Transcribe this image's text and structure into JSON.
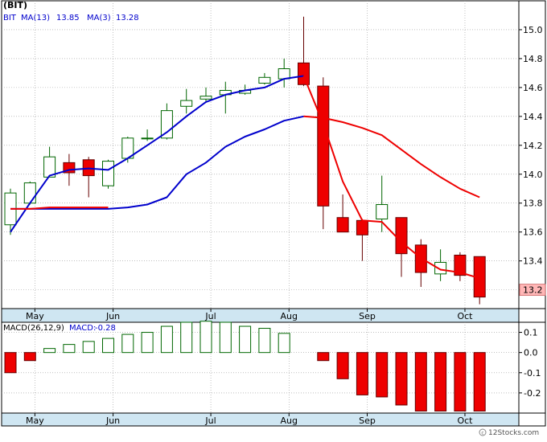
{
  "chart_data": [
    {
      "type": "candlestick",
      "title": "(BIT)",
      "legend": [
        {
          "label": "MA(13)",
          "value": "13.85",
          "color": "#0000cc"
        },
        {
          "label": "MA(3)",
          "value": "13.28",
          "color": "#0000cc"
        }
      ],
      "ylim": [
        13.07,
        15.2
      ],
      "yticks": [
        "15.0",
        "14.8",
        "14.6",
        "14.4",
        "14.2",
        "14.0",
        "13.8",
        "13.6",
        "13.4",
        "13.2"
      ],
      "last_price_label": "13.2",
      "months": [
        "May",
        "Jun",
        "Jul",
        "Aug",
        "Sep",
        "Oct"
      ],
      "month_positions": [
        1.25,
        5.25,
        10.25,
        14.25,
        18.25,
        23.25
      ],
      "candles": [
        {
          "open": 13.65,
          "close": 13.87,
          "high": 13.9,
          "low": 13.58
        },
        {
          "open": 13.8,
          "close": 13.94,
          "high": 13.95,
          "low": 13.79
        },
        {
          "open": 13.98,
          "close": 14.12,
          "high": 14.19,
          "low": 13.98
        },
        {
          "open": 14.08,
          "close": 14.01,
          "high": 14.14,
          "low": 13.92
        },
        {
          "open": 14.1,
          "close": 13.99,
          "high": 14.12,
          "low": 13.84
        },
        {
          "open": 13.92,
          "close": 14.09,
          "high": 14.1,
          "low": 13.9
        },
        {
          "open": 14.11,
          "close": 14.25,
          "high": 14.26,
          "low": 14.08
        },
        {
          "open": 14.25,
          "close": 14.25,
          "high": 14.31,
          "low": 14.23
        },
        {
          "open": 14.25,
          "close": 14.44,
          "high": 14.49,
          "low": 14.24
        },
        {
          "open": 14.47,
          "close": 14.51,
          "high": 14.59,
          "low": 14.42
        },
        {
          "open": 14.52,
          "close": 14.54,
          "high": 14.6,
          "low": 14.5
        },
        {
          "open": 14.55,
          "close": 14.58,
          "high": 14.64,
          "low": 14.42
        },
        {
          "open": 14.56,
          "close": 14.58,
          "high": 14.62,
          "low": 14.55
        },
        {
          "open": 14.63,
          "close": 14.67,
          "high": 14.7,
          "low": 14.62
        },
        {
          "open": 14.66,
          "close": 14.73,
          "high": 14.8,
          "low": 14.6
        },
        {
          "open": 14.77,
          "close": 14.62,
          "high": 15.09,
          "low": 14.61
        },
        {
          "open": 14.61,
          "close": 13.78,
          "high": 14.67,
          "low": 13.62
        },
        {
          "open": 13.7,
          "close": 13.6,
          "high": 13.86,
          "low": 13.6
        },
        {
          "open": 13.68,
          "close": 13.58,
          "high": 13.69,
          "low": 13.4
        },
        {
          "open": 13.69,
          "close": 13.79,
          "high": 13.99,
          "low": 13.6
        },
        {
          "open": 13.7,
          "close": 13.45,
          "high": 13.7,
          "low": 13.29
        },
        {
          "open": 13.51,
          "close": 13.32,
          "high": 13.55,
          "low": 13.22
        },
        {
          "open": 13.31,
          "close": 13.39,
          "high": 13.48,
          "low": 13.26
        },
        {
          "open": 13.44,
          "close": 13.3,
          "high": 13.46,
          "low": 13.26
        },
        {
          "open": 13.43,
          "close": 13.15,
          "high": 13.43,
          "low": 13.1
        }
      ],
      "series": [
        {
          "name": "MA(13)",
          "color": "#0000cc",
          "x": [
            0,
            1,
            2,
            3,
            4,
            5,
            6,
            7,
            8,
            9,
            10,
            11,
            12,
            13,
            14,
            15
          ],
          "values": [
            13.76,
            13.76,
            13.76,
            13.76,
            13.76,
            13.76,
            13.77,
            13.79,
            13.84,
            14.0,
            14.08,
            14.19,
            14.26,
            14.31,
            14.37,
            14.4
          ]
        },
        {
          "name": "MA(13)",
          "color": "#ee0000",
          "x": [
            15,
            16,
            17,
            18,
            19,
            20,
            21,
            22,
            23,
            24
          ],
          "values": [
            14.4,
            14.39,
            14.36,
            14.32,
            14.27,
            14.17,
            14.07,
            13.98,
            13.9,
            13.84
          ]
        },
        {
          "name": "MA(3)",
          "color": "#0000cc",
          "x": [
            0,
            1,
            2,
            3,
            4,
            5,
            6,
            7,
            8,
            9,
            10,
            11,
            12,
            13,
            14,
            15
          ],
          "values": [
            13.6,
            13.8,
            13.99,
            14.03,
            14.04,
            14.03,
            14.11,
            14.2,
            14.29,
            14.4,
            14.5,
            14.55,
            14.58,
            14.6,
            14.66,
            14.68
          ]
        },
        {
          "name": "MA(3)",
          "color": "#ee0000",
          "x": [
            0,
            1,
            2,
            3,
            4,
            5
          ],
          "values": [
            13.76,
            13.76,
            13.77,
            13.77,
            13.77,
            13.77
          ]
        },
        {
          "name": "MA(3)",
          "color": "#ee0000",
          "x": [
            15,
            16,
            17,
            18,
            19,
            20,
            21,
            22,
            23,
            24
          ],
          "values": [
            14.68,
            14.35,
            13.95,
            13.68,
            13.67,
            13.53,
            13.42,
            13.34,
            13.32,
            13.28
          ]
        }
      ]
    },
    {
      "type": "bar",
      "legend": [
        {
          "label": "MACD(26,12,9)",
          "color": "#000000"
        },
        {
          "label": "MACD:",
          "value": "-0.28",
          "color": "#0000cc"
        }
      ],
      "ylim": [
        -0.3,
        0.15
      ],
      "yticks": [
        "0.1",
        "0.0",
        "-0.1",
        "-0.2"
      ],
      "months": [
        "May",
        "Jun",
        "Jul",
        "Aug",
        "Sep",
        "Oct"
      ],
      "values": [
        -0.1,
        -0.04,
        0.02,
        0.04,
        0.055,
        0.07,
        0.09,
        0.1,
        0.13,
        0.15,
        0.155,
        0.15,
        0.13,
        0.12,
        0.095,
        null,
        -0.04,
        -0.13,
        -0.21,
        -0.22,
        -0.26,
        -0.29,
        -0.29,
        -0.29,
        -0.29
      ]
    }
  ]
}
